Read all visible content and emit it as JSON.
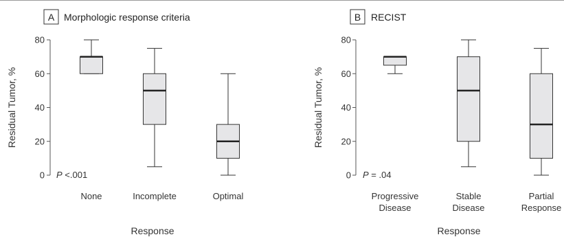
{
  "chart_data": [
    {
      "type": "box",
      "panel_letter": "A",
      "title": "Morphologic response criteria",
      "xlabel": "Response",
      "ylabel": "Residual Tumor, %",
      "ylim": [
        0,
        80
      ],
      "yticks": [
        0,
        20,
        40,
        60,
        80
      ],
      "p_label": "P",
      "p_value": "<.001",
      "categories": [
        [
          "None"
        ],
        [
          "Incomplete"
        ],
        [
          "Optimal"
        ]
      ],
      "boxes": [
        {
          "min": 60,
          "q1": 60,
          "median": 70,
          "q3": 70,
          "max": 80
        },
        {
          "min": 5,
          "q1": 30,
          "median": 50,
          "q3": 60,
          "max": 75
        },
        {
          "min": 0,
          "q1": 10,
          "median": 20,
          "q3": 30,
          "max": 60
        }
      ]
    },
    {
      "type": "box",
      "panel_letter": "B",
      "title": "RECIST",
      "xlabel": "Response",
      "ylabel": "Residual Tumor, %",
      "ylim": [
        0,
        80
      ],
      "yticks": [
        0,
        20,
        40,
        60,
        80
      ],
      "p_label": "P",
      "p_value": "= .04",
      "categories": [
        [
          "Progressive",
          "Disease"
        ],
        [
          "Stable",
          "Disease"
        ],
        [
          "Partial",
          "Response"
        ]
      ],
      "boxes": [
        {
          "min": 60,
          "q1": 65,
          "median": 70,
          "q3": 70,
          "max": 70
        },
        {
          "min": 5,
          "q1": 20,
          "median": 50,
          "q3": 70,
          "max": 80
        },
        {
          "min": 0,
          "q1": 10,
          "median": 30,
          "q3": 60,
          "max": 75
        }
      ]
    }
  ],
  "colors": {
    "box_fill": "#e6e6e8",
    "stroke": "#333333",
    "axis": "#555555",
    "rule": "#999999"
  }
}
